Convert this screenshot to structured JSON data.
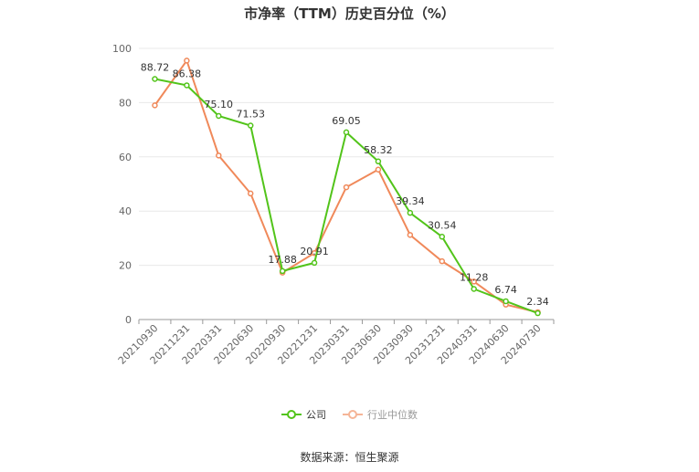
{
  "chart_data": {
    "type": "line",
    "title": "市净率（TTM）历史百分位（%）",
    "categories": [
      "20210930",
      "20211231",
      "20220331",
      "20220630",
      "20220930",
      "20221231",
      "20230331",
      "20230630",
      "20230930",
      "20231231",
      "20240331",
      "20240630",
      "20240730"
    ],
    "series": [
      {
        "name": "公司",
        "color": "#52c41a",
        "values": [
          88.72,
          86.38,
          75.1,
          71.53,
          17.88,
          20.91,
          69.05,
          58.32,
          39.34,
          30.54,
          11.28,
          6.74,
          2.34
        ],
        "labels": [
          "88.72",
          "86.38",
          "75.10",
          "71.53",
          "17.88",
          "20.91",
          "69.05",
          "58.32",
          "39.34",
          "30.54",
          "11.28",
          "6.74",
          "2.34"
        ]
      },
      {
        "name": "行业中位数",
        "color": "#f0895a",
        "values": [
          79.0,
          95.5,
          60.5,
          46.5,
          17.3,
          24.5,
          48.8,
          55.3,
          31.2,
          21.5,
          14.0,
          5.5,
          2.7
        ]
      }
    ],
    "ylim": [
      0,
      100
    ],
    "yticks": [
      0,
      20,
      40,
      60,
      80,
      100
    ],
    "grid": true,
    "legend": "bottom-center"
  },
  "source_text": "数据来源：恒生聚源"
}
